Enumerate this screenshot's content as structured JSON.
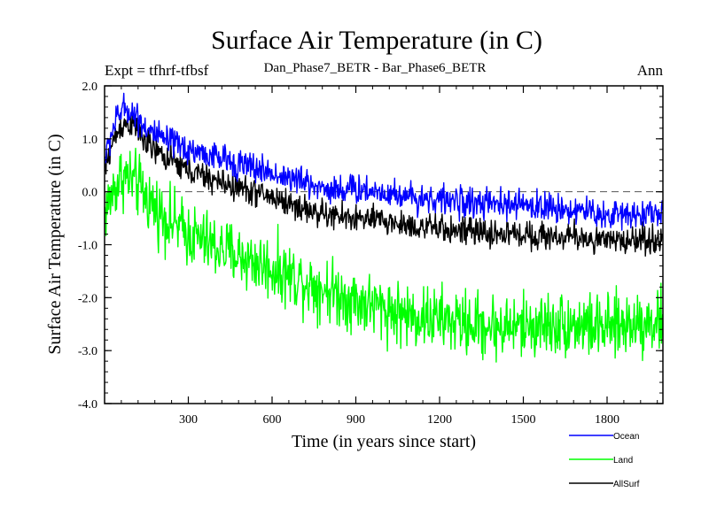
{
  "chart_data": {
    "type": "line",
    "title": "Surface Air Temperature (in C)",
    "subtitle_left": "Expt = tfhrf-tfbsf",
    "subtitle_center": "Dan_Phase7_BETR - Bar_Phase6_BETR",
    "subtitle_right": "Ann",
    "xlabel": "Time (in years since start)",
    "ylabel": "Surface Air Temperature (in C)",
    "xlim": [
      0,
      2000
    ],
    "ylim": [
      -4.0,
      2.0
    ],
    "x_ticks": [
      300,
      600,
      900,
      1200,
      1500,
      1800
    ],
    "x_tick_labels": [
      "300",
      "600",
      "900",
      "1200",
      "1500",
      "1800"
    ],
    "y_ticks": [
      2.0,
      1.0,
      0.0,
      -1.0,
      -2.0,
      -3.0,
      -4.0
    ],
    "y_tick_labels": [
      "2.0",
      "1.0",
      "0.0",
      "-1.0",
      "-2.0",
      "-3.0",
      "-4.0"
    ],
    "reference_line": 0.0,
    "grid": false,
    "legend_position": "bottom-right",
    "series": [
      {
        "name": "Ocean",
        "color": "#0000ff",
        "noise": 0.14,
        "x": [
          0,
          30,
          60,
          90,
          120,
          150,
          200,
          300,
          400,
          500,
          600,
          700,
          800,
          900,
          1000,
          1100,
          1200,
          1300,
          1400,
          1500,
          1600,
          1700,
          1800,
          1900,
          2000
        ],
        "values": [
          0.6,
          1.2,
          1.55,
          1.55,
          1.4,
          1.2,
          1.0,
          0.8,
          0.65,
          0.5,
          0.35,
          0.2,
          0.05,
          0.05,
          0.0,
          -0.1,
          -0.15,
          -0.2,
          -0.25,
          -0.25,
          -0.3,
          -0.35,
          -0.45,
          -0.4,
          -0.4
        ]
      },
      {
        "name": "Land",
        "color": "#00ff00",
        "noise": 0.3,
        "x": [
          0,
          30,
          60,
          90,
          120,
          150,
          200,
          300,
          400,
          500,
          600,
          700,
          800,
          900,
          1000,
          1100,
          1200,
          1300,
          1400,
          1500,
          1600,
          1700,
          1800,
          1900,
          2000
        ],
        "values": [
          -0.4,
          0.0,
          0.3,
          0.25,
          0.1,
          -0.1,
          -0.4,
          -0.8,
          -1.05,
          -1.25,
          -1.45,
          -1.65,
          -1.85,
          -2.05,
          -2.2,
          -2.35,
          -2.4,
          -2.5,
          -2.55,
          -2.55,
          -2.5,
          -2.5,
          -2.6,
          -2.45,
          -2.45
        ]
      },
      {
        "name": "AllSurf",
        "color": "#000000",
        "noise": 0.13,
        "x": [
          0,
          30,
          60,
          90,
          120,
          150,
          200,
          300,
          400,
          500,
          600,
          700,
          800,
          900,
          1000,
          1100,
          1200,
          1300,
          1400,
          1500,
          1600,
          1700,
          1800,
          1900,
          2000
        ],
        "values": [
          0.4,
          0.95,
          1.25,
          1.3,
          1.15,
          0.9,
          0.7,
          0.4,
          0.2,
          0.05,
          -0.1,
          -0.3,
          -0.45,
          -0.5,
          -0.55,
          -0.65,
          -0.7,
          -0.75,
          -0.8,
          -0.8,
          -0.85,
          -0.85,
          -0.95,
          -0.9,
          -0.9
        ]
      }
    ]
  }
}
